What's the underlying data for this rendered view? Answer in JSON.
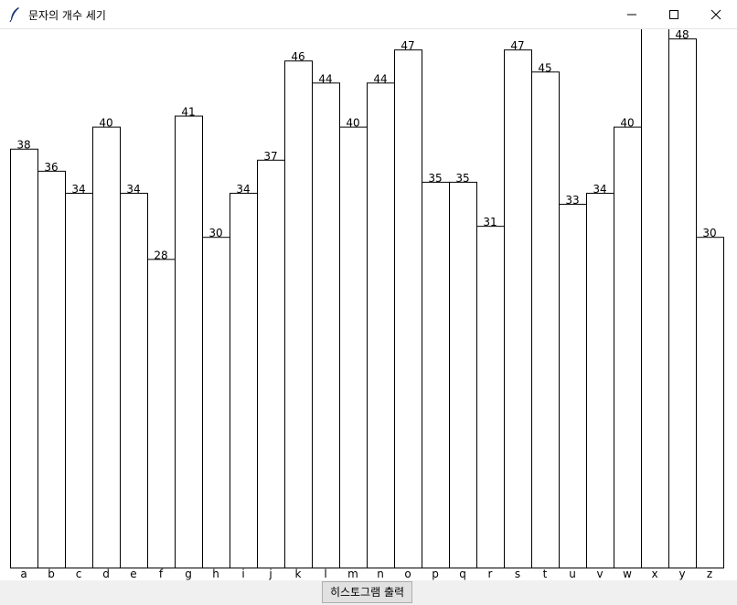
{
  "window": {
    "title": "문자의 개수 세기",
    "icon": "feather-icon",
    "controls": [
      "minimize-icon",
      "maximize-icon",
      "close-icon"
    ]
  },
  "chart_data": {
    "type": "bar",
    "categories": [
      "a",
      "b",
      "c",
      "d",
      "e",
      "f",
      "g",
      "h",
      "i",
      "j",
      "k",
      "l",
      "m",
      "n",
      "o",
      "p",
      "q",
      "r",
      "s",
      "t",
      "u",
      "v",
      "w",
      "x",
      "y",
      "z"
    ],
    "values": [
      38,
      36,
      34,
      40,
      34,
      28,
      41,
      30,
      34,
      37,
      46,
      44,
      40,
      44,
      47,
      35,
      35,
      31,
      47,
      45,
      33,
      34,
      40,
      49,
      48,
      30
    ],
    "title": "",
    "xlabel": "",
    "ylabel": "",
    "grid": false,
    "bar_fill": "#ffffff",
    "bar_stroke": "#000000"
  },
  "button": {
    "label": "히스토그램 출력"
  }
}
